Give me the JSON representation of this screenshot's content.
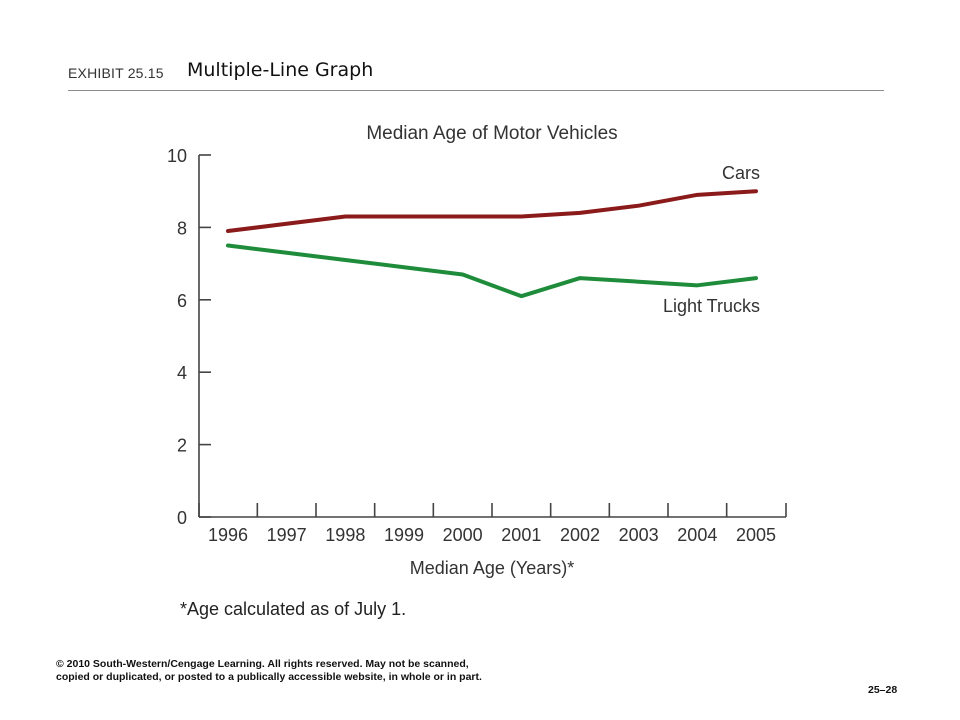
{
  "header": {
    "exhibit_label": "EXHIBIT 25.15",
    "exhibit_title": "Multiple-Line Graph"
  },
  "chart_data": {
    "type": "line",
    "title": "Median Age of Motor Vehicles",
    "xlabel": "Median Age (Years)*",
    "ylabel": "",
    "categories": [
      "1996",
      "1997",
      "1998",
      "1999",
      "2000",
      "2001",
      "2002",
      "2003",
      "2004",
      "2005"
    ],
    "y_ticks": [
      "0",
      "2",
      "4",
      "6",
      "8",
      "10"
    ],
    "ylim": [
      0,
      10
    ],
    "grid": false,
    "legend": "inline labels at line ends",
    "series": [
      {
        "name": "Cars",
        "color": "#8b1a1a",
        "values": [
          7.9,
          8.1,
          8.3,
          8.3,
          8.3,
          8.3,
          8.4,
          8.6,
          8.9,
          9.0
        ]
      },
      {
        "name": "Light Trucks",
        "color": "#1e8c3a",
        "values": [
          7.5,
          7.3,
          7.1,
          6.9,
          6.7,
          6.1,
          6.6,
          6.5,
          6.4,
          6.6
        ]
      }
    ],
    "footnote": "*Age calculated as of July 1."
  },
  "footer": {
    "copyright": "© 2010 South-Western/Cengage Learning. All rights reserved. May not be scanned, copied or duplicated, or posted to a publically accessible website, in whole or in part.",
    "slide_number": "25–28"
  }
}
